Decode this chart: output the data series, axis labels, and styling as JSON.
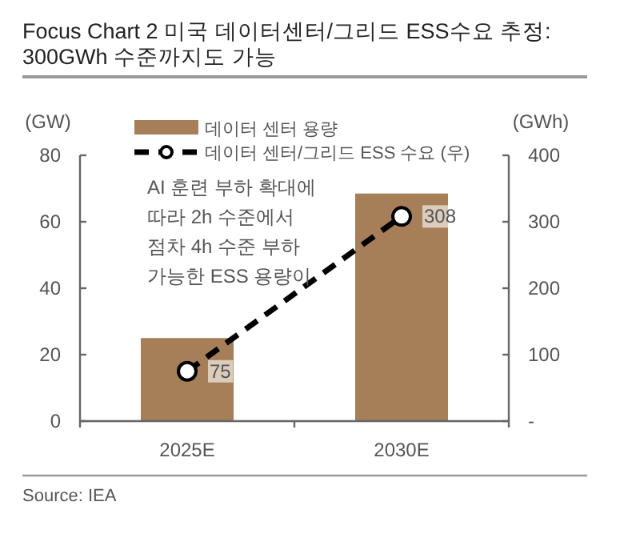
{
  "chart_data": {
    "type": "bar",
    "title": "Focus Chart 2 미국 데이터센터/그리드 ESS수요 추정: 300GWh 수준까지도 가능",
    "categories": [
      "2025E",
      "2030E"
    ],
    "series": [
      {
        "name": "데이터 센터 용량",
        "color": "#a67f58",
        "values": [
          25,
          68.5
        ]
      },
      {
        "name": "데이터 센터/그리드 ESS 수요 (우)",
        "type": "line",
        "axis": "y2",
        "color": "#000000",
        "values": [
          75,
          308
        ],
        "value_labels": [
          "75",
          "308"
        ],
        "marker": "circle",
        "line_style": "dashed"
      }
    ],
    "ylabel": "(GW)",
    "y2label": "(GWh)",
    "ylim": [
      0,
      80
    ],
    "yticks": [
      0,
      20,
      40,
      60,
      80
    ],
    "y2lim": [
      0,
      400
    ],
    "y2ticks": [
      {
        "value": 0,
        "label": "-"
      },
      100,
      200,
      300,
      400
    ],
    "legend": "top",
    "grid": false,
    "annotations": [
      "AI 훈련 부하 확대에\n따라 2h 수준에서\n점차 4h 수준 부하\n가능한 ESS 용량이",
      "Source: IEA"
    ]
  }
}
